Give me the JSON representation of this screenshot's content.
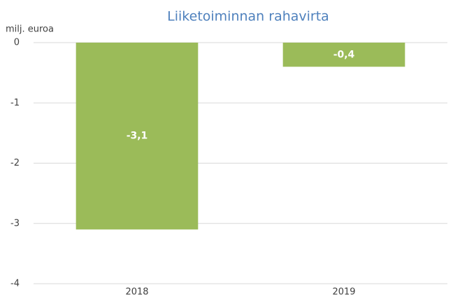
{
  "chart_data": {
    "type": "bar",
    "title": "Liiketoiminnan rahavirta",
    "y_label": "milj. euroa",
    "categories": [
      "2018",
      "2019"
    ],
    "values": [
      -3.1,
      -0.4
    ],
    "value_labels": [
      "-3,1",
      "-0,4"
    ],
    "color": "#9bbb59",
    "ylim": [
      -4,
      0
    ],
    "yticks": [
      -4,
      -3,
      -2,
      -1,
      0
    ],
    "grid": true
  }
}
